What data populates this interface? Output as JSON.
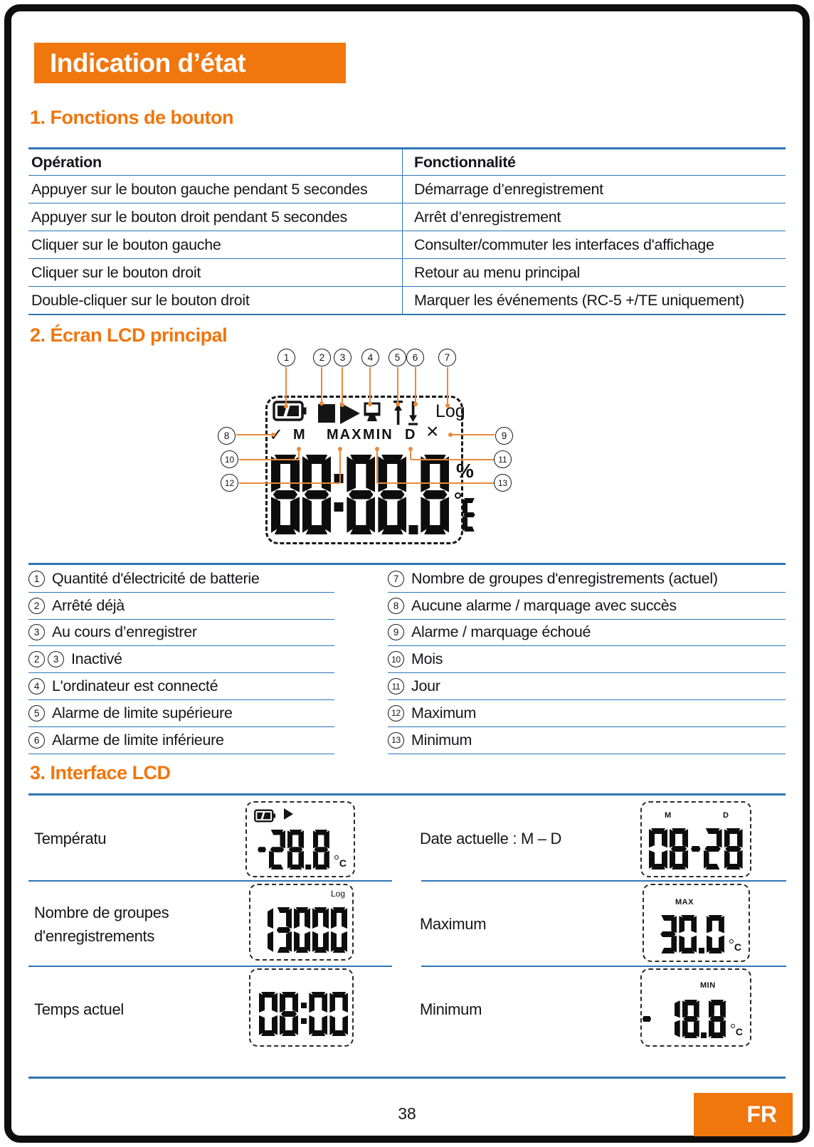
{
  "colors": {
    "orange": "#f0760e",
    "blue": "#2e75b6",
    "ink": "#15151c",
    "leader_orange": "#e9893b"
  },
  "page": {
    "title": "Indication d’état",
    "number": "38",
    "lang": "FR"
  },
  "section1": {
    "title": "1. Fonctions de bouton",
    "table": {
      "headers": [
        "Opération",
        "Fonctionnalité"
      ],
      "rows": [
        [
          "Appuyer sur le bouton gauche pendant 5 secondes",
          "Démarrage d’enregistrement"
        ],
        [
          "Appuyer sur le bouton droit pendant 5 secondes",
          "Arrêt d’enregistrement"
        ],
        [
          "Cliquer sur le bouton gauche",
          "Consulter/commuter les interfaces d'affichage"
        ],
        [
          "Cliquer sur le bouton droit",
          "Retour au menu principal"
        ],
        [
          "Double-cliquer sur le bouton droit",
          "Marquer les événements (RC-5 +/TE uniquement)"
        ]
      ]
    }
  },
  "section2": {
    "title": "2. Écran LCD principal",
    "callouts": [
      "1",
      "2",
      "3",
      "4",
      "5",
      "6",
      "7",
      "8",
      "9",
      "10",
      "11",
      "12",
      "13"
    ],
    "lcd": {
      "value": "88:88.8",
      "percent": "%",
      "unit": "°C",
      "unit_glyph": "E",
      "log": "Log",
      "status": {
        "check": "✓",
        "m": "M",
        "max": "MAX",
        "min": "MIN",
        "d": "D",
        "x": "×"
      }
    },
    "legend_left": [
      {
        "nums": [
          "1"
        ],
        "text": "Quantité d'électricité de batterie"
      },
      {
        "nums": [
          "2"
        ],
        "text": "Arrêté déjà"
      },
      {
        "nums": [
          "3"
        ],
        "text": "Au cours d’enregistrer"
      },
      {
        "nums": [
          "2",
          "3"
        ],
        "text": "Inactivé"
      },
      {
        "nums": [
          "4"
        ],
        "text": "L'ordinateur est connecté"
      },
      {
        "nums": [
          "5"
        ],
        "text": "Alarme de limite supérieure"
      },
      {
        "nums": [
          "6"
        ],
        "text": "Alarme de limite inférieure"
      }
    ],
    "legend_right": [
      {
        "nums": [
          "7"
        ],
        "text": "Nombre de groupes d'enregistrements (actuel)"
      },
      {
        "nums": [
          "8"
        ],
        "text": "Aucune alarme / marquage avec succès"
      },
      {
        "nums": [
          "9"
        ],
        "text": "Alarme / marquage échoué"
      },
      {
        "nums": [
          "10"
        ],
        "text": "Mois"
      },
      {
        "nums": [
          "11"
        ],
        "text": "Jour"
      },
      {
        "nums": [
          "12"
        ],
        "text": "Maximum"
      },
      {
        "nums": [
          "13"
        ],
        "text": "Minimum"
      }
    ]
  },
  "section3": {
    "title": "3. Interface LCD",
    "temp": {
      "label": "Températu",
      "value": "-28.8",
      "unit": "°C"
    },
    "date": {
      "label": "Date actuelle : M – D",
      "value": "08-28",
      "m": "M",
      "d": "D"
    },
    "log": {
      "label_lines": [
        "Nombre de groupes",
        "d'enregistrements"
      ],
      "value": "13000",
      "log": "Log"
    },
    "max": {
      "label": "Maximum",
      "value": "30.0",
      "unit": "°C",
      "tag": "MAX"
    },
    "time": {
      "label": "Temps actuel",
      "value": "08:00"
    },
    "min": {
      "label": "Minimum",
      "value": "- 18.8",
      "unit": "°C",
      "tag": "MIN"
    }
  }
}
